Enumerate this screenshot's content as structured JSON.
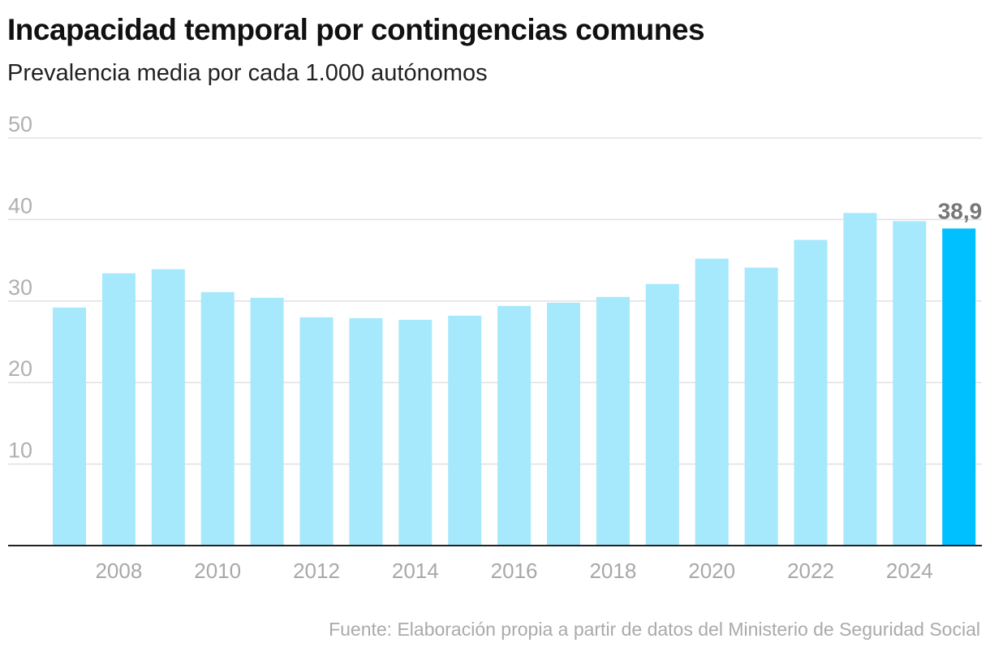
{
  "chart_data": {
    "type": "bar",
    "title": "Incapacidad temporal por contingencias comunes",
    "subtitle": "Prevalencia media por cada 1.000 autónomos",
    "source": "Fuente: Elaboración propia a partir de datos del Ministerio de Seguridad Social",
    "categories": [
      2007,
      2008,
      2009,
      2010,
      2011,
      2012,
      2013,
      2014,
      2015,
      2016,
      2017,
      2018,
      2019,
      2020,
      2021,
      2022,
      2023,
      2024,
      2025
    ],
    "values": [
      29.2,
      33.4,
      33.9,
      31.1,
      30.4,
      28.0,
      27.9,
      27.7,
      28.2,
      29.4,
      29.8,
      30.5,
      32.1,
      35.2,
      34.1,
      37.5,
      40.8,
      39.8,
      38.9
    ],
    "highlight": {
      "category": 2025,
      "label": "38,9"
    },
    "ylim": [
      0,
      50
    ],
    "yticks": [
      10,
      20,
      30,
      40,
      50
    ],
    "xticks": [
      "2008",
      "2010",
      "2012",
      "2014",
      "2016",
      "2018",
      "2020",
      "2022",
      "2024"
    ],
    "grid": true,
    "colors": {
      "bar": "#a6e8fc",
      "highlight": "#00c0ff",
      "grid": "#e0e0e0",
      "axis": "#222222",
      "tick_text": "#aaaaaa",
      "label_text": "#777777"
    }
  }
}
